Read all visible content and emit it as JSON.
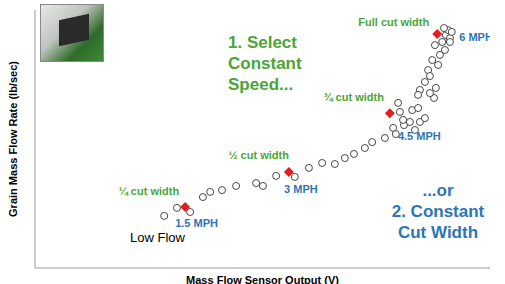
{
  "chart_data": {
    "type": "scatter",
    "x_label": "Mass Flow Sensor Output (V)",
    "y_label": "Grain Mass Flow Rate (lb/sec)",
    "xlim": [
      0,
      100
    ],
    "ylim": [
      0,
      100
    ],
    "tick_labels": false,
    "grid": false,
    "series": [
      {
        "color": "#333333",
        "marker": "circle",
        "x": [
          28.4,
          31.2,
          34.1,
          36.9,
          38.5,
          41.1,
          44.2,
          48.6,
          50.1,
          53.0,
          57.1,
          60.2,
          63.1,
          65.9,
          68.1,
          70.1,
          72.5,
          74.1,
          76.9,
          78.7,
          79.3,
          81.1,
          82.4,
          82.9,
          84.2,
          80.2,
          80.9,
          79.8,
          83.5,
          84.6,
          85.7,
          84.6,
          85.7,
          86.4,
          86.8,
          87.3,
          87.7,
          88.1,
          88.6,
          89.0,
          89.5,
          90.1,
          90.3,
          90.8,
          91.2,
          89.9,
          91.2,
          91.6,
          86.8,
          84.2,
          87.9
        ],
        "y": [
          20.2,
          23.3,
          21.7,
          27.5,
          29.5,
          30.2,
          31.8,
          32.9,
          31.8,
          35.7,
          35.3,
          38.8,
          40.7,
          40.3,
          42.6,
          44.2,
          46.5,
          48.8,
          50.4,
          54.3,
          51.9,
          55.4,
          56.6,
          61.2,
          62.0,
          60.5,
          57.4,
          64.0,
          53.5,
          56.6,
          58.1,
          69.0,
          72.1,
          76.7,
          74.4,
          80.6,
          65.9,
          69.8,
          78.7,
          82.6,
          87.6,
          84.5,
          90.3,
          92.2,
          89.1,
          93.0,
          87.6,
          91.5,
          67.8,
          67.1,
          86.4
        ]
      },
      {
        "color": "#e02020",
        "marker": "diamond",
        "x": [
          33.0,
          55.8,
          78.0,
          88.4
        ],
        "y": [
          23.6,
          37.2,
          60.0,
          90.7
        ],
        "cut_width_labels": [
          "¼ cut width",
          "½ cut width",
          "¾ cut width",
          "Full cut width"
        ],
        "speed_labels": [
          "1.5 MPH",
          "3 MPH",
          "4.5 MPH",
          "6 MPH"
        ],
        "cut_width_color": "#4aa535",
        "speed_color": "#2e75b6"
      }
    ],
    "annotations": [
      {
        "lines": [
          "1. Select",
          "Constant",
          "Speed..."
        ],
        "color": "#4aa535"
      },
      {
        "lines": [
          "...or",
          "2. Constant",
          "Cut Width"
        ],
        "color": "#2e75b6"
      },
      {
        "lines": [
          "Low Flow"
        ],
        "color": "#000000"
      }
    ]
  }
}
